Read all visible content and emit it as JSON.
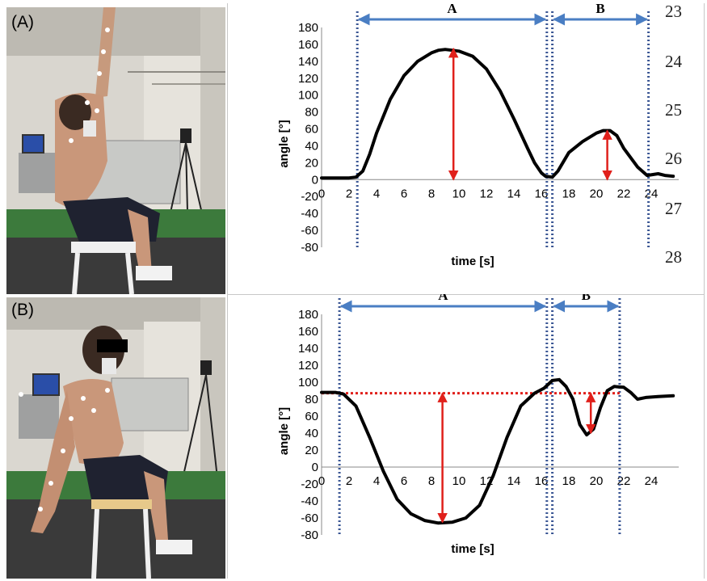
{
  "panels": [
    {
      "label": "(A)"
    },
    {
      "label": "(B)"
    }
  ],
  "line_numbers": [
    "23",
    "24",
    "25",
    "26",
    "27",
    "28"
  ],
  "chart_data": [
    {
      "type": "line",
      "xlabel": "time [s]",
      "ylabel": "angle [°]",
      "xlim": [
        0,
        26
      ],
      "ylim": [
        -80,
        180
      ],
      "xticks": [
        0,
        2,
        4,
        6,
        8,
        10,
        12,
        14,
        16,
        18,
        20,
        22,
        24
      ],
      "yticks": [
        180,
        160,
        140,
        120,
        100,
        80,
        60,
        40,
        20,
        0,
        -20,
        -40,
        -60,
        -80
      ],
      "x": [
        0,
        1,
        2,
        2.5,
        3,
        3.5,
        4,
        5,
        6,
        7,
        8,
        8.5,
        9,
        9.5,
        10,
        11,
        12,
        13,
        14,
        15,
        15.5,
        16,
        16.3,
        16.8,
        17.2,
        18,
        19,
        20,
        20.5,
        21,
        21.5,
        22,
        23,
        23.7,
        24.5,
        25,
        25.6
      ],
      "y": [
        2,
        2,
        2,
        3,
        10,
        30,
        55,
        95,
        123,
        140,
        150,
        153,
        154,
        153,
        152,
        146,
        131,
        105,
        72,
        37,
        20,
        8,
        4,
        3,
        10,
        32,
        45,
        55,
        58,
        58,
        52,
        37,
        15,
        5,
        7,
        5,
        4
      ],
      "regions": [
        {
          "label": "A",
          "start": 2.6,
          "end": 16.4
        },
        {
          "label": "B",
          "start": 16.8,
          "end": 23.8
        }
      ],
      "amplitude_arrows": [
        {
          "x": 9.6,
          "from": 0,
          "to": 155
        },
        {
          "x": 20.8,
          "from": 0,
          "to": 58
        }
      ],
      "grid": false,
      "line_color": "#000000",
      "divider_color": "#3a5694",
      "span_arrow_color": "#4a7ec3",
      "amplitude_arrow_color": "#e0201b"
    },
    {
      "type": "line",
      "xlabel": "time [s]",
      "ylabel": "angle [°]",
      "xlim": [
        0,
        26
      ],
      "ylim": [
        -80,
        180
      ],
      "xticks": [
        0,
        2,
        4,
        6,
        8,
        10,
        12,
        14,
        16,
        18,
        20,
        22,
        24
      ],
      "yticks": [
        180,
        160,
        140,
        120,
        100,
        80,
        60,
        40,
        20,
        0,
        -20,
        -40,
        -60,
        -80
      ],
      "x": [
        0,
        1,
        1.6,
        2.5,
        3.5,
        4.5,
        5.5,
        6.5,
        7.5,
        8.5,
        9.5,
        10.5,
        11.5,
        12.5,
        13.5,
        14.5,
        15.5,
        16.2,
        16.8,
        17.3,
        17.8,
        18.3,
        18.8,
        19.3,
        19.8,
        20.3,
        20.8,
        21.3,
        22,
        22.5,
        23,
        23.6,
        24.5,
        25.6
      ],
      "y": [
        88,
        88,
        86,
        72,
        35,
        -5,
        -38,
        -55,
        -63,
        -66,
        -65,
        -60,
        -45,
        -10,
        35,
        72,
        87,
        93,
        102,
        103,
        95,
        80,
        50,
        38,
        45,
        70,
        90,
        95,
        94,
        88,
        80,
        82,
        83,
        84
      ],
      "reference_value": 87,
      "regions": [
        {
          "label": "A",
          "start": 1.3,
          "end": 16.4
        },
        {
          "label": "B",
          "start": 16.8,
          "end": 21.7
        }
      ],
      "amplitude_arrows": [
        {
          "x": 8.8,
          "from": 87,
          "to": -65
        },
        {
          "x": 19.6,
          "from": 87,
          "to": 40
        }
      ],
      "grid": false,
      "line_color": "#000000",
      "divider_color": "#3a5694",
      "span_arrow_color": "#4a7ec3",
      "amplitude_arrow_color": "#e0201b",
      "reference_color": "#e0201b"
    }
  ]
}
